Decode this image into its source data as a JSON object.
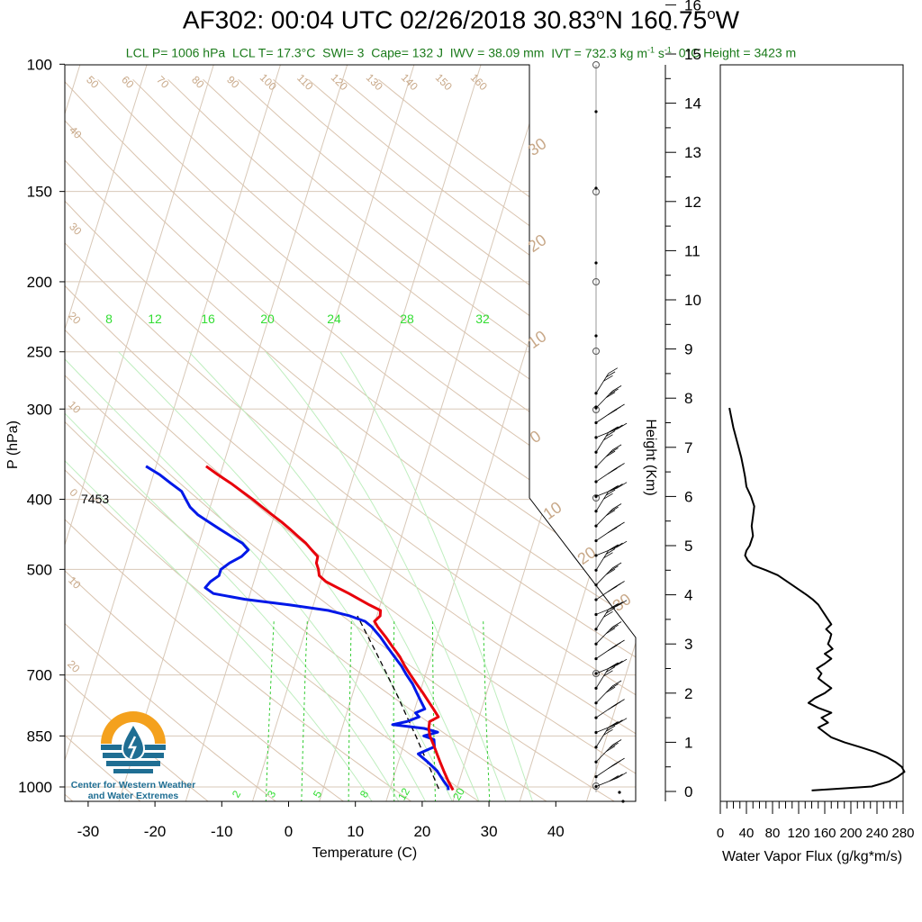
{
  "title": {
    "main": "AF302: 00:04 UTC 02/26/2018  30.83",
    "lat_deg": "o",
    "lat_hem": "N 160.75",
    "lon_deg": "o",
    "lon_hem": "W"
  },
  "stats": {
    "lcl_p": "LCL P= 1006 hPa",
    "lcl_t": "LCL T= 17.3°C",
    "swi": "SWI= 3",
    "cape": "Cape= 132 J",
    "iwv": "IWV = 38.09 mm",
    "ivt": "IVT = 732.3 kg m",
    "ivt_sup1": "-1",
    "ivt_mid": " s",
    "ivt_sup2": "-1",
    "zero_height": "0°C Height = 3423 m"
  },
  "logo": {
    "line1": "Center for Western Weather",
    "line2": "and Water Extremes"
  },
  "colors": {
    "temperature": "#e8000b",
    "dewpoint": "#0018e8",
    "isotherm": "#d8c8b8",
    "dry_adiabat": "#d9c3ae",
    "dry_adiabat_label": "#c8a888",
    "moist_adiabat": "#bfeebf",
    "moist_label": "#33dd33",
    "mixing_ratio": "#33cc33",
    "parcel": "#000000",
    "stats_text": "#1a7a1a",
    "logo_orange": "#f4a11d",
    "logo_blue": "#1f6e93"
  },
  "chart_data": [
    {
      "type": "line",
      "subtype": "skew-t",
      "xlabel": "Temperature (C)",
      "ylabel": "P (hPa)",
      "x_ticks": [
        -30,
        -20,
        -10,
        0,
        10,
        20,
        30,
        40
      ],
      "p_ticks": [
        100,
        150,
        200,
        250,
        300,
        400,
        500,
        700,
        850,
        1000
      ],
      "plim": [
        1050,
        100
      ],
      "temperature_profile": {
        "name": "Temperature",
        "p": [
          1010,
          1000,
          980,
          950,
          925,
          900,
          875,
          850,
          830,
          812,
          800,
          780,
          760,
          740,
          720,
          700,
          680,
          660,
          640,
          620,
          600,
          590,
          580,
          570,
          560,
          550,
          540,
          530,
          520,
          510,
          500,
          490,
          480,
          470,
          460,
          450,
          440,
          430,
          420,
          410,
          400,
          390,
          380,
          370,
          360
        ],
        "t": [
          19.5,
          19.1,
          18.3,
          17.2,
          16.3,
          15.4,
          14.5,
          13.5,
          13.0,
          12.8,
          13.9,
          12.8,
          11.6,
          10.4,
          9.1,
          7.8,
          6.5,
          5.3,
          3.8,
          2.3,
          0.6,
          -0.1,
          0.5,
          0.3,
          -1.6,
          -3.4,
          -5.2,
          -7.2,
          -9.2,
          -10.5,
          -10.9,
          -11.5,
          -11.6,
          -12.8,
          -14.0,
          -15.5,
          -17.0,
          -18.6,
          -20.4,
          -22.2,
          -24.0,
          -26.0,
          -28.0,
          -30.3,
          -32.5
        ]
      },
      "dewpoint_profile": {
        "name": "Dewpoint",
        "p": [
          1010,
          1000,
          980,
          950,
          925,
          900,
          880,
          860,
          850,
          840,
          830,
          820,
          812,
          800,
          790,
          780,
          760,
          740,
          720,
          700,
          680,
          660,
          640,
          620,
          600,
          590,
          580,
          570,
          560,
          550,
          540,
          530,
          520,
          510,
          500,
          490,
          480,
          470,
          460,
          450,
          440,
          430,
          420,
          410,
          400,
          390,
          380,
          370,
          360
        ],
        "t": [
          18.8,
          18.6,
          17.6,
          16.2,
          14.5,
          12.6,
          14.7,
          14.3,
          12.6,
          14.5,
          12.3,
          7.4,
          9.4,
          11.0,
          10.3,
          11.5,
          10.5,
          9.5,
          8.5,
          7.2,
          6.0,
          4.5,
          3.0,
          1.5,
          -0.3,
          -1.5,
          -4.0,
          -7.5,
          -13.5,
          -20.5,
          -25.5,
          -27.0,
          -26.5,
          -25.5,
          -25.5,
          -24.5,
          -23.0,
          -22.3,
          -23.5,
          -25.5,
          -27.5,
          -29.5,
          -31.5,
          -33.0,
          -34.0,
          -35.0,
          -37.0,
          -39.0,
          -41.5
        ]
      },
      "parcel_profile": {
        "name": "Parcel",
        "p": [
          1006,
          950,
          900,
          850,
          800,
          750,
          700,
          650,
          600,
          580
        ],
        "t": [
          17.3,
          15.3,
          13.4,
          11.4,
          9.2,
          6.9,
          4.3,
          1.5,
          -1.6,
          -2.9
        ]
      },
      "isotherm_labels": [
        -150,
        -140,
        -130,
        -120,
        -110,
        -100,
        -90,
        -80,
        -70,
        -60,
        -50,
        -40,
        -30,
        -20,
        -10,
        0,
        10,
        20,
        30,
        40
      ],
      "dry_adiabat_labels": [
        "40",
        "30",
        "20",
        "10",
        "0",
        "10",
        "20",
        "50",
        "60",
        "70",
        "80",
        "90",
        "100",
        "110",
        "120",
        "130",
        "140",
        "150",
        "160"
      ],
      "moist_adiabat_labels": [
        "8",
        "12",
        "16",
        "20",
        "24",
        "28",
        "32"
      ],
      "mixing_ratio_labels": [
        "2",
        "3",
        "5",
        "8",
        "12",
        "20"
      ],
      "skewed_temp_labels": [
        "30",
        "20",
        "10",
        "0",
        "10",
        "20",
        "30"
      ],
      "height_annotation": "7453",
      "wind_station_heights_km": [
        8.1,
        7.8,
        7.5,
        7.2,
        6.9,
        6.6,
        6.3,
        6.0,
        5.7,
        5.4,
        5.1,
        4.8,
        4.5,
        4.2,
        3.9,
        3.6,
        3.3,
        3.0,
        2.7,
        2.4,
        2.1,
        1.8,
        1.5,
        1.2,
        0.9,
        0.6,
        0.3,
        0.1
      ]
    },
    {
      "type": "line",
      "subtype": "height-axis",
      "ylabel": "Height (Km)",
      "height_ticks": [
        0,
        1,
        2,
        3,
        4,
        5,
        6,
        7,
        8,
        9,
        10,
        11,
        12,
        13,
        14,
        15,
        16
      ]
    },
    {
      "type": "line",
      "xlabel": "Water Vapor Flux (g/kg*m/s)",
      "x_ticks": [
        0,
        40,
        80,
        120,
        160,
        200,
        240,
        280
      ],
      "xlim": [
        0,
        280
      ],
      "ylim_km": [
        -0.2,
        16.5
      ],
      "series": [
        {
          "height_km": [
            0.02,
            0.05,
            0.1,
            0.2,
            0.3,
            0.4,
            0.5,
            0.6,
            0.7,
            0.8,
            0.9,
            1.0,
            1.1,
            1.2,
            1.3,
            1.4,
            1.5,
            1.6,
            1.7,
            1.8,
            1.9,
            2.0,
            2.1,
            2.2,
            2.3,
            2.4,
            2.5,
            2.6,
            2.7,
            2.8,
            2.9,
            3.0,
            3.1,
            3.2,
            3.3,
            3.4,
            3.5,
            3.6,
            3.7,
            3.8,
            3.9,
            4.0,
            4.2,
            4.4,
            4.5,
            4.6,
            4.7,
            4.8,
            4.9,
            5.0,
            5.2,
            5.4,
            5.6,
            5.8,
            6.0,
            6.2,
            6.4,
            6.6,
            6.8,
            7.0,
            7.2,
            7.4,
            7.6,
            7.8
          ],
          "flux": [
            140,
            175,
            232,
            258,
            272,
            282,
            278,
            268,
            255,
            238,
            215,
            190,
            170,
            160,
            150,
            165,
            155,
            170,
            150,
            135,
            145,
            160,
            170,
            160,
            150,
            155,
            148,
            160,
            170,
            160,
            172,
            165,
            168,
            170,
            162,
            170,
            165,
            160,
            155,
            150,
            142,
            132,
            110,
            88,
            70,
            50,
            42,
            38,
            40,
            45,
            50,
            48,
            50,
            52,
            47,
            40,
            38,
            35,
            32,
            28,
            24,
            20,
            17,
            14
          ]
        }
      ]
    }
  ]
}
